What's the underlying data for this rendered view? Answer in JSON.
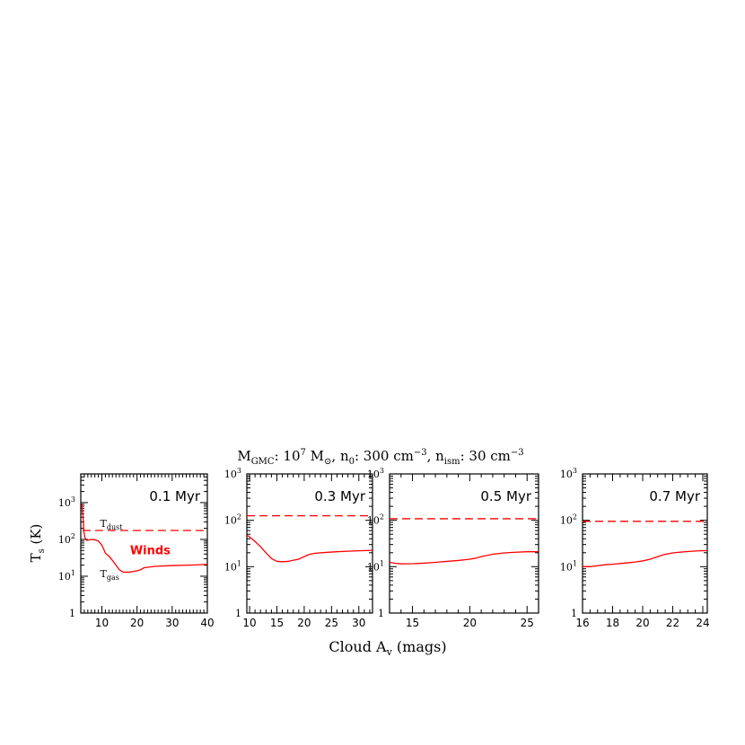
{
  "figure": {
    "title_parts": {
      "m": "M",
      "m_sub": "GMC",
      "colon1": ": 10",
      "exp7": "7",
      "msun": " M",
      "sun_sub": "⊙",
      "n0": ", n",
      "n0_sub": "0",
      "n0_val": ": 300 cm",
      "exp_m3a": "−3",
      "nism": ", n",
      "nism_sub": "ism",
      "nism_val": ": 30 cm",
      "exp_m3b": "−3"
    },
    "ylabel_main": "T",
    "ylabel_sub": "s",
    "ylabel_unit": " (K)",
    "xlabel_main": "Cloud A",
    "xlabel_sub": "v",
    "xlabel_unit": " (mags)"
  },
  "chart_data": [
    {
      "type": "line",
      "panel_label": "0.1 Myr",
      "xlim": [
        4,
        40
      ],
      "ylim": [
        1,
        6000
      ],
      "yscale": "log",
      "ytick_labels": [
        {
          "base": "1",
          "exp": "",
          "value": 1
        },
        {
          "base": "10",
          "exp": "1",
          "value": 10
        },
        {
          "base": "10",
          "exp": "2",
          "value": 100
        },
        {
          "base": "10",
          "exp": "3",
          "value": 1000
        }
      ],
      "xticks": [
        10,
        20,
        30,
        40
      ],
      "xtick_labels": [
        "10",
        "20",
        "30",
        "40"
      ],
      "annotations": [
        {
          "main": "T",
          "sub": "dust",
          "x": 9.5,
          "y": 220
        },
        {
          "main": "T",
          "sub": "gas",
          "x": 9.5,
          "y": 9.5
        },
        {
          "main": "Winds",
          "sub": "",
          "x": 18,
          "y": 40,
          "color": "#ff0000"
        }
      ],
      "series": [
        {
          "style": "dashed",
          "x": [
            4.5,
            40
          ],
          "y": [
            175,
            175
          ]
        },
        {
          "style": "solid",
          "x": [
            4.3,
            4.6,
            4.9,
            5.2,
            5.6,
            6,
            7,
            8,
            9,
            10,
            10.5,
            11,
            12,
            13,
            14,
            15,
            16,
            17,
            18,
            19,
            20,
            21,
            22,
            25,
            30,
            35,
            40
          ],
          "y": [
            900,
            450,
            160,
            110,
            95,
            95,
            100,
            98,
            90,
            70,
            55,
            42,
            35,
            27,
            20,
            15,
            13,
            12.8,
            13,
            13.5,
            14,
            15,
            17,
            18.5,
            19.5,
            20,
            21
          ]
        }
      ]
    },
    {
      "type": "line",
      "panel_label": "0.3 Myr",
      "xlim": [
        9.5,
        32.5
      ],
      "ylim": [
        1,
        1000
      ],
      "yscale": "log",
      "ytick_labels": [
        {
          "base": "1",
          "exp": "",
          "value": 1
        },
        {
          "base": "10",
          "exp": "1",
          "value": 10
        },
        {
          "base": "10",
          "exp": "2",
          "value": 100
        },
        {
          "base": "10",
          "exp": "3",
          "value": 1000
        }
      ],
      "xticks": [
        10,
        15,
        20,
        25,
        30
      ],
      "xtick_labels": [
        "10",
        "15",
        "20",
        "25",
        "30"
      ],
      "annotations": [],
      "series": [
        {
          "style": "dashed",
          "x": [
            9.5,
            32.5
          ],
          "y": [
            125,
            125
          ]
        },
        {
          "style": "solid",
          "x": [
            9.5,
            10,
            11,
            12,
            13,
            14,
            15,
            16,
            17,
            18,
            19,
            20,
            21,
            22,
            24,
            26,
            28,
            30,
            32.5
          ],
          "y": [
            48,
            44,
            35,
            27,
            20,
            15,
            13,
            12.8,
            13,
            13.8,
            14.5,
            16.5,
            18.5,
            19.5,
            20.3,
            21,
            21.5,
            22,
            22.5
          ]
        }
      ]
    },
    {
      "type": "line",
      "panel_label": "0.5 Myr",
      "xlim": [
        13,
        26
      ],
      "ylim": [
        1,
        1000
      ],
      "yscale": "log",
      "ytick_labels": [
        {
          "base": "1",
          "exp": "",
          "value": 1
        },
        {
          "base": "10",
          "exp": "1",
          "value": 10
        },
        {
          "base": "10",
          "exp": "2",
          "value": 100
        },
        {
          "base": "10",
          "exp": "3",
          "value": 1000
        }
      ],
      "xticks": [
        15,
        20,
        25
      ],
      "xtick_labels": [
        "15",
        "20",
        "25"
      ],
      "annotations": [],
      "series": [
        {
          "style": "dashed",
          "x": [
            13,
            26
          ],
          "y": [
            108,
            108
          ]
        },
        {
          "style": "solid",
          "x": [
            13,
            13.5,
            14,
            15,
            16,
            17,
            18,
            19,
            20,
            20.5,
            21,
            22,
            23,
            24,
            25,
            26
          ],
          "y": [
            12.5,
            11.8,
            11.5,
            11.6,
            11.9,
            12.4,
            13,
            13.6,
            14.5,
            15.2,
            16.5,
            18.5,
            19.8,
            20.5,
            21,
            21
          ]
        }
      ]
    },
    {
      "type": "line",
      "panel_label": "0.7 Myr",
      "xlim": [
        16,
        24.3
      ],
      "ylim": [
        1,
        1000
      ],
      "yscale": "log",
      "ytick_labels": [
        {
          "base": "1",
          "exp": "",
          "value": 1
        },
        {
          "base": "10",
          "exp": "1",
          "value": 10
        },
        {
          "base": "10",
          "exp": "2",
          "value": 100
        },
        {
          "base": "10",
          "exp": "3",
          "value": 1000
        }
      ],
      "xticks": [
        16,
        18,
        20,
        22,
        24
      ],
      "xtick_labels": [
        "16",
        "18",
        "20",
        "22",
        "24"
      ],
      "annotations": [],
      "series": [
        {
          "style": "dashed",
          "x": [
            16,
            24.3
          ],
          "y": [
            95,
            95
          ]
        },
        {
          "style": "solid",
          "x": [
            16,
            16.5,
            17,
            17.5,
            18,
            18.5,
            19,
            19.5,
            20,
            20.5,
            21,
            21.5,
            22,
            22.5,
            23,
            23.5,
            24.3
          ],
          "y": [
            10,
            10,
            10.5,
            11,
            11.3,
            11.7,
            12.1,
            12.6,
            13.3,
            14.5,
            16.5,
            18.5,
            19.8,
            20.6,
            21.2,
            21.8,
            22.3
          ]
        }
      ]
    }
  ]
}
